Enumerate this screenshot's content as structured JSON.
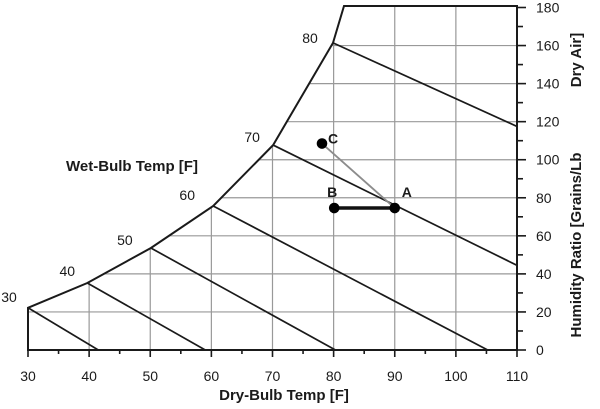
{
  "chart_data": {
    "type": "line",
    "title": "",
    "xlabel": "Dry-Bulb Temp [F]",
    "ylabel": "Humidity Ratio [Grains/Lb Dry Air]",
    "ylabel_parts": [
      "Humidity Ratio [Grains/Lb",
      "Dry Air]"
    ],
    "wet_bulb_axis_label": "Wet-Bulb Temp [F]",
    "xlim": [
      30,
      110
    ],
    "ylim": [
      0,
      180
    ],
    "x_ticks": [
      30,
      40,
      50,
      60,
      70,
      80,
      90,
      100,
      110
    ],
    "x_minor_step": 5,
    "y_ticks": [
      0,
      20,
      40,
      60,
      80,
      100,
      120,
      140,
      160,
      180
    ],
    "y_minor_step": 10,
    "grid": {
      "on": true,
      "x_lines": [
        40,
        50,
        60,
        70,
        80,
        90,
        100
      ],
      "y_lines": [
        20,
        40,
        60,
        80,
        100,
        120,
        140,
        160
      ],
      "color": "#999999"
    },
    "saturation_curve": [
      [
        30,
        22.2
      ],
      [
        39.7,
        35.2
      ],
      [
        50.1,
        53.6
      ],
      [
        60.3,
        75.7
      ],
      [
        70.1,
        107.7
      ],
      [
        79.9,
        161.4
      ],
      [
        81.7,
        180.8
      ]
    ],
    "top_boundary_w": 180.8,
    "wet_bulb_lines": [
      {
        "label": "30",
        "points": [
          [
            30,
            22.2
          ],
          [
            41.5,
            0
          ]
        ],
        "label_offset": [
          -19,
          -11
        ]
      },
      {
        "label": "40",
        "points": [
          [
            39.7,
            35.2
          ],
          [
            59,
            0
          ]
        ],
        "label_offset": [
          -20,
          -12
        ]
      },
      {
        "label": "50",
        "points": [
          [
            50.1,
            53.6
          ],
          [
            80.3,
            0
          ]
        ],
        "label_offset": [
          -26,
          -8
        ]
      },
      {
        "label": "60",
        "points": [
          [
            60.3,
            75.7
          ],
          [
            105.2,
            0
          ]
        ],
        "label_offset": [
          -26,
          -11
        ]
      },
      {
        "label": "70",
        "points": [
          [
            70.1,
            107.7
          ],
          [
            110,
            44.5
          ]
        ],
        "label_offset": [
          -21,
          -8
        ]
      },
      {
        "label": "80",
        "points": [
          [
            79.9,
            161.4
          ],
          [
            110,
            117.5
          ]
        ],
        "label_offset": [
          -23,
          -5
        ]
      }
    ],
    "points": [
      {
        "label": "A",
        "x": 90,
        "y": 74.6,
        "label_offset": [
          12,
          -16
        ]
      },
      {
        "label": "B",
        "x": 80.1,
        "y": 74.6,
        "label_offset": [
          -2,
          -16
        ]
      },
      {
        "label": "C",
        "x": 78.1,
        "y": 108.5,
        "label_offset": [
          11,
          -5
        ]
      }
    ],
    "connectors": [
      {
        "from": "C",
        "to": "A",
        "color": "#8c8c8c",
        "width": 1.8
      },
      {
        "from": "B",
        "to": "A",
        "color": "#111111",
        "width": 3.5
      }
    ],
    "colors": {
      "line": "#1a1a1a",
      "grid": "#999999",
      "marker": "#000000",
      "background": "#ffffff"
    },
    "legend": {
      "visible": false
    }
  }
}
